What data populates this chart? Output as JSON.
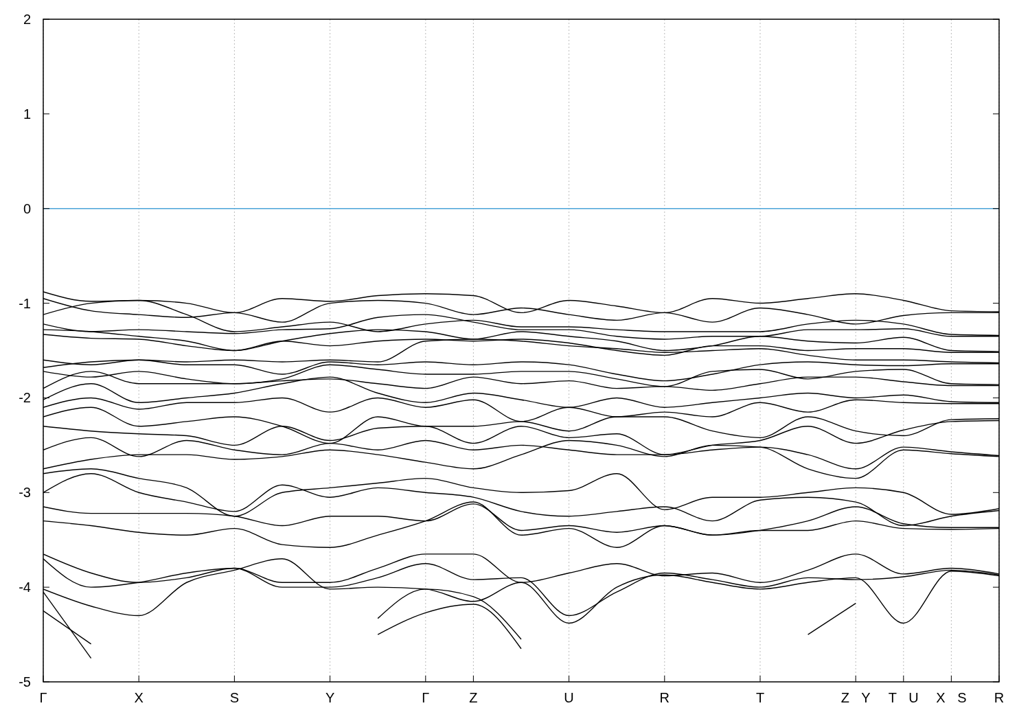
{
  "chart_data": {
    "type": "line",
    "ylim": [
      -5,
      2
    ],
    "yticks": [
      2,
      1,
      0,
      -1,
      -2,
      -3,
      -4,
      -5
    ],
    "categories": [
      "Γ",
      null,
      "X",
      null,
      "S",
      null,
      "Y",
      null,
      "Γ",
      "Z",
      null,
      "U",
      null,
      "R",
      null,
      "T",
      null,
      "Z Y",
      "T U",
      "X S",
      "R"
    ],
    "grid": "x",
    "line_style": "solid",
    "ref_lines": [
      {
        "axis": "y",
        "value": 0,
        "color": "#4aa3d8"
      }
    ],
    "series": [
      {
        "color": "#000000",
        "values": [
          -0.88,
          -0.98,
          -0.97,
          -1.0,
          -1.1,
          -0.95,
          -0.98,
          -0.92,
          -0.9,
          -0.92,
          -1.1,
          -0.97,
          -1.03,
          -1.1,
          -0.95,
          -1.0,
          -0.95,
          -0.9,
          -0.97,
          -1.08,
          -1.09
        ]
      },
      {
        "color": "#000000",
        "values": [
          -0.95,
          -1.08,
          -1.12,
          -1.15,
          -1.1,
          -1.2,
          -1.0,
          -0.97,
          -1.0,
          -1.12,
          -1.05,
          -1.12,
          -1.18,
          -1.1,
          -1.2,
          -1.05,
          -1.12,
          -1.22,
          -1.13,
          -1.1,
          -1.1
        ]
      },
      {
        "color": "#000000",
        "values": [
          -1.12,
          -1.0,
          -0.97,
          -1.12,
          -1.3,
          -1.25,
          -1.2,
          -1.3,
          -1.22,
          -1.18,
          -1.25,
          -1.25,
          -1.28,
          -1.3,
          -1.3,
          -1.3,
          -1.22,
          -1.18,
          -1.22,
          -1.33,
          -1.34
        ]
      },
      {
        "color": "#000000",
        "values": [
          -1.22,
          -1.3,
          -1.28,
          -1.3,
          -1.32,
          -1.28,
          -1.27,
          -1.15,
          -1.12,
          -1.2,
          -1.28,
          -1.28,
          -1.35,
          -1.38,
          -1.35,
          -1.35,
          -1.28,
          -1.28,
          -1.27,
          -1.35,
          -1.35
        ]
      },
      {
        "color": "#000000",
        "values": [
          -1.28,
          -1.3,
          -1.35,
          -1.4,
          -1.5,
          -1.4,
          -1.32,
          -1.28,
          -1.3,
          -1.38,
          -1.3,
          -1.35,
          -1.4,
          -1.5,
          -1.45,
          -1.35,
          -1.4,
          -1.42,
          -1.36,
          -1.5,
          -1.51
        ]
      },
      {
        "color": "#000000",
        "values": [
          -1.33,
          -1.37,
          -1.38,
          -1.45,
          -1.5,
          -1.4,
          -1.45,
          -1.4,
          -1.38,
          -1.4,
          -1.38,
          -1.42,
          -1.5,
          -1.55,
          -1.45,
          -1.45,
          -1.5,
          -1.48,
          -1.48,
          -1.52,
          -1.52
        ]
      },
      {
        "color": "#000000",
        "values": [
          -1.6,
          -1.65,
          -1.6,
          -1.62,
          -1.6,
          -1.62,
          -1.6,
          -1.62,
          -1.4,
          -1.38,
          -1.4,
          -1.45,
          -1.48,
          -1.52,
          -1.5,
          -1.48,
          -1.55,
          -1.6,
          -1.6,
          -1.62,
          -1.63
        ]
      },
      {
        "color": "#000000",
        "values": [
          -1.68,
          -1.62,
          -1.6,
          -1.65,
          -1.65,
          -1.75,
          -1.62,
          -1.65,
          -1.62,
          -1.65,
          -1.62,
          -1.65,
          -1.75,
          -1.82,
          -1.75,
          -1.65,
          -1.62,
          -1.65,
          -1.66,
          -1.64,
          -1.64
        ]
      },
      {
        "color": "#000000",
        "values": [
          -1.72,
          -1.78,
          -1.72,
          -1.8,
          -1.85,
          -1.8,
          -1.65,
          -1.7,
          -1.75,
          -1.75,
          -1.72,
          -1.72,
          -1.8,
          -1.88,
          -1.72,
          -1.7,
          -1.8,
          -1.72,
          -1.7,
          -1.85,
          -1.86
        ]
      },
      {
        "color": "#000000",
        "values": [
          -1.9,
          -1.72,
          -1.85,
          -1.85,
          -1.85,
          -1.82,
          -1.8,
          -1.85,
          -1.9,
          -1.78,
          -1.85,
          -1.82,
          -1.9,
          -1.88,
          -1.92,
          -1.85,
          -1.78,
          -1.78,
          -1.83,
          -1.87,
          -1.87
        ]
      },
      {
        "color": "#000000",
        "values": [
          -2.02,
          -1.85,
          -2.05,
          -2.0,
          -1.95,
          -1.85,
          -1.78,
          -1.95,
          -2.05,
          -1.95,
          -2.02,
          -2.1,
          -2.0,
          -2.1,
          -2.05,
          -2.0,
          -1.95,
          -2.0,
          -1.97,
          -2.04,
          -2.05
        ]
      },
      {
        "color": "#000000",
        "values": [
          -2.1,
          -2.0,
          -2.12,
          -2.05,
          -2.05,
          -2.0,
          -2.15,
          -2.0,
          -2.1,
          -2.02,
          -2.25,
          -2.1,
          -2.2,
          -2.15,
          -2.2,
          -2.05,
          -2.15,
          -2.02,
          -2.05,
          -2.06,
          -2.06
        ]
      },
      {
        "color": "#000000",
        "values": [
          -2.2,
          -2.1,
          -2.3,
          -2.25,
          -2.2,
          -2.3,
          -2.48,
          -2.2,
          -2.3,
          -2.3,
          -2.25,
          -2.35,
          -2.2,
          -2.2,
          -2.35,
          -2.42,
          -2.2,
          -2.35,
          -2.4,
          -2.23,
          -2.22
        ]
      },
      {
        "color": "#000000",
        "values": [
          -2.3,
          -2.35,
          -2.38,
          -2.4,
          -2.5,
          -2.3,
          -2.45,
          -2.32,
          -2.3,
          -2.48,
          -2.3,
          -2.42,
          -2.38,
          -2.6,
          -2.5,
          -2.45,
          -2.3,
          -2.48,
          -2.34,
          -2.25,
          -2.24
        ]
      },
      {
        "color": "#000000",
        "values": [
          -2.55,
          -2.42,
          -2.62,
          -2.45,
          -2.55,
          -2.6,
          -2.48,
          -2.55,
          -2.45,
          -2.55,
          -2.5,
          -2.55,
          -2.6,
          -2.6,
          -2.55,
          -2.52,
          -2.6,
          -2.75,
          -2.52,
          -2.57,
          -2.61
        ]
      },
      {
        "color": "#000000",
        "values": [
          -2.75,
          -2.65,
          -2.6,
          -2.6,
          -2.65,
          -2.62,
          -2.55,
          -2.6,
          -2.68,
          -2.75,
          -2.6,
          -2.45,
          -2.5,
          -2.62,
          -2.5,
          -2.52,
          -2.75,
          -2.85,
          -2.55,
          -2.59,
          -2.62
        ]
      },
      {
        "color": "#000000",
        "values": [
          -2.8,
          -2.75,
          -2.85,
          -2.95,
          -3.25,
          -3.0,
          -2.95,
          -2.9,
          -2.85,
          -2.95,
          -3.0,
          -2.98,
          -2.8,
          -3.18,
          -3.05,
          -3.05,
          -3.0,
          -2.95,
          -3.0,
          -3.23,
          -3.17
        ]
      },
      {
        "color": "#000000",
        "values": [
          -3.0,
          -2.8,
          -3.0,
          -3.1,
          -3.2,
          -2.92,
          -3.05,
          -2.95,
          -3.0,
          -3.05,
          -3.2,
          -3.25,
          -3.2,
          -3.15,
          -3.3,
          -3.08,
          -3.05,
          -3.1,
          -3.35,
          -3.25,
          -3.19
        ]
      },
      {
        "color": "#000000",
        "values": [
          -3.15,
          -3.22,
          -3.22,
          -3.22,
          -3.25,
          -3.35,
          -3.25,
          -3.25,
          -3.3,
          -3.12,
          -3.4,
          -3.35,
          -3.42,
          -3.35,
          -3.45,
          -3.4,
          -3.3,
          -3.15,
          -3.33,
          -3.37,
          -3.37
        ]
      },
      {
        "color": "#000000",
        "values": [
          -3.3,
          -3.35,
          -3.42,
          -3.45,
          -3.38,
          -3.55,
          -3.58,
          -3.45,
          -3.3,
          -3.1,
          -3.45,
          -3.38,
          -3.58,
          -3.35,
          -3.45,
          -3.4,
          -3.4,
          -3.3,
          -3.38,
          -3.39,
          -3.38
        ]
      },
      {
        "color": "#000000",
        "values": [
          -3.65,
          -3.85,
          -3.95,
          -3.9,
          -3.8,
          -3.95,
          -3.95,
          -3.8,
          -3.65,
          -3.65,
          -3.95,
          -3.85,
          -3.75,
          -3.88,
          -3.85,
          -3.95,
          -3.82,
          -3.65,
          -3.86,
          -3.8,
          -3.86
        ]
      },
      {
        "color": "#000000",
        "values": [
          -3.7,
          -4.0,
          -3.95,
          -3.85,
          -3.8,
          -4.0,
          -4.0,
          -3.9,
          -3.75,
          -3.92,
          -3.9,
          -4.3,
          -4.05,
          -3.85,
          -3.92,
          -4.0,
          -3.9,
          -3.92,
          -3.89,
          -3.82,
          -3.87
        ]
      },
      {
        "color": "#000000",
        "values": [
          -4.02,
          -4.2,
          -4.3,
          -3.95,
          -3.82,
          -3.7,
          -4.02,
          -4.0,
          -4.02,
          -4.15,
          -3.95,
          -4.38,
          -4.0,
          -3.87,
          -3.95,
          -4.02,
          -3.95,
          -3.9,
          -4.38,
          -3.83,
          -3.88
        ]
      },
      {
        "color": "#000000",
        "values": [
          -4.05,
          -4.75,
          null,
          null,
          null,
          null,
          null,
          null,
          null,
          null,
          null,
          null,
          null,
          null,
          null,
          null,
          null,
          null,
          null,
          null,
          null
        ]
      },
      {
        "color": "#000000",
        "values": [
          -4.25,
          -4.6,
          null,
          null,
          null,
          null,
          null,
          null,
          null,
          null,
          null,
          null,
          null,
          null,
          null,
          null,
          null,
          null,
          null,
          null,
          null
        ]
      },
      {
        "color": "#000000",
        "values": [
          null,
          null,
          null,
          null,
          null,
          null,
          null,
          -4.33,
          -4.02,
          -4.1,
          -4.55,
          null,
          null,
          null,
          null,
          null,
          null,
          null,
          null,
          null,
          null
        ]
      },
      {
        "color": "#000000",
        "values": [
          null,
          null,
          null,
          null,
          null,
          null,
          null,
          -4.5,
          -4.27,
          -4.18,
          -4.65,
          null,
          null,
          null,
          null,
          null,
          null,
          null,
          null,
          null,
          null
        ]
      },
      {
        "color": "#000000",
        "values": [
          null,
          null,
          null,
          null,
          null,
          null,
          null,
          null,
          null,
          null,
          null,
          null,
          null,
          null,
          null,
          null,
          -4.5,
          -4.17,
          null,
          null,
          null
        ]
      }
    ]
  }
}
